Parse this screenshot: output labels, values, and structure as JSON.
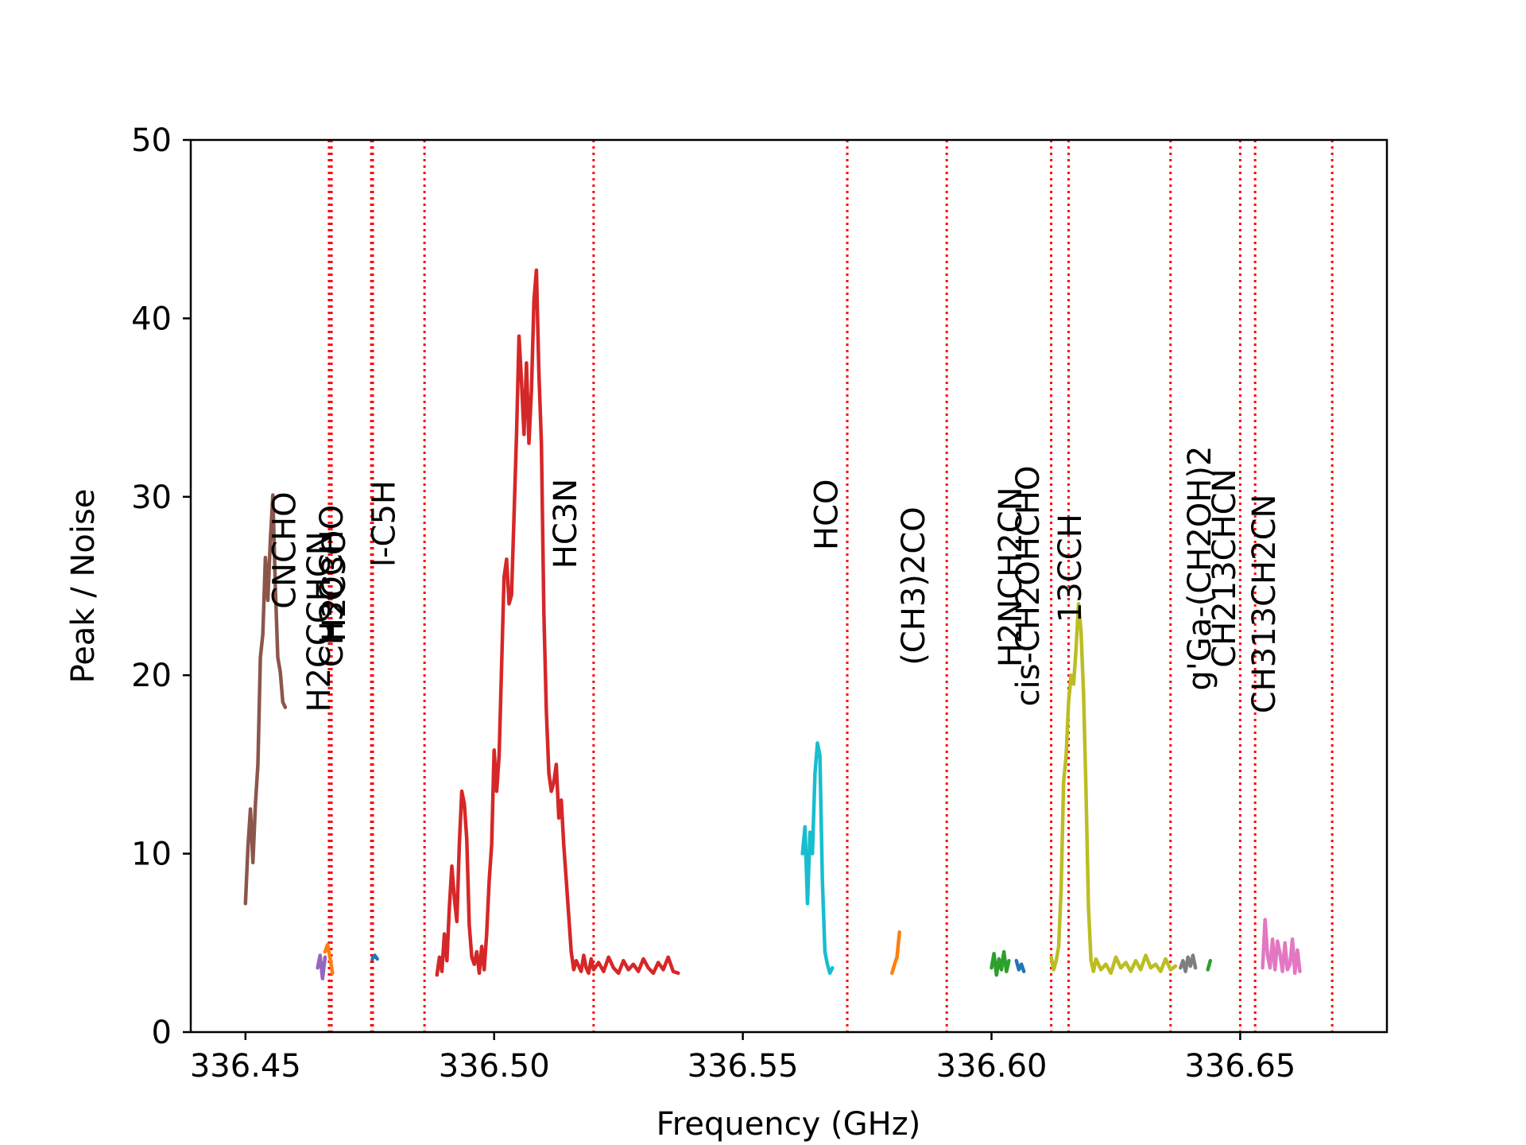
{
  "chart_data": {
    "type": "line",
    "title": "",
    "xlabel": "Frequency (GHz)",
    "ylabel": "Peak / Noise",
    "xlim": [
      336.439,
      336.6795
    ],
    "ylim": [
      0,
      50
    ],
    "xticks": [
      336.45,
      336.5,
      336.55,
      336.6,
      336.65
    ],
    "xtick_labels": [
      "336.45",
      "336.50",
      "336.55",
      "336.60",
      "336.65"
    ],
    "yticks": [
      0,
      10,
      20,
      30,
      40,
      50
    ],
    "ytick_labels": [
      "0",
      "10",
      "20",
      "30",
      "40",
      "50"
    ],
    "grid": false,
    "marker_line_color": "#ff0000",
    "series": [
      {
        "color": "#8c564b",
        "x": [
          336.45,
          336.4505,
          336.451,
          336.4515,
          336.452,
          336.4525,
          336.453,
          336.4535,
          336.454,
          336.4545,
          336.455,
          336.4555,
          336.456,
          336.4565,
          336.457,
          336.4575,
          336.458
        ],
        "y": [
          7.2,
          10.4,
          12.5,
          9.5,
          12.8,
          15.0,
          21.0,
          22.3,
          26.6,
          24.2,
          27.5,
          30.1,
          25.0,
          21.0,
          20.2,
          18.5,
          18.2
        ]
      },
      {
        "color": "#9467bd",
        "x": [
          336.4645,
          336.465,
          336.4655,
          336.466
        ],
        "y": [
          3.6,
          4.3,
          3.0,
          4.2
        ]
      },
      {
        "color": "#ff7f0e",
        "x": [
          336.466,
          336.4665,
          336.467,
          336.4675
        ],
        "y": [
          4.5,
          4.9,
          4.2,
          3.3
        ]
      },
      {
        "color": "#1f77b4",
        "x": [
          336.4755,
          336.476,
          336.4765
        ],
        "y": [
          4.1,
          4.3,
          4.1
        ]
      },
      {
        "color": "#d62728",
        "x": [
          336.4885,
          336.489,
          336.4895,
          336.49,
          336.4905,
          336.491,
          336.4915,
          336.492,
          336.4925,
          336.493,
          336.4935,
          336.494,
          336.4945,
          336.495,
          336.4955,
          336.496,
          336.4965,
          336.497,
          336.4975,
          336.498,
          336.4985,
          336.499,
          336.4995,
          336.5,
          336.5005,
          336.501,
          336.5015,
          336.502,
          336.5025,
          336.503,
          336.5035,
          336.504,
          336.5045,
          336.505,
          336.5055,
          336.506,
          336.5065,
          336.507,
          336.5075,
          336.508,
          336.5085,
          336.509,
          336.5095,
          336.51,
          336.5105,
          336.511,
          336.5115,
          336.512,
          336.5125,
          336.513,
          336.5135,
          336.514,
          336.5145,
          336.515,
          336.5155,
          336.516,
          336.5165,
          336.517,
          336.5175,
          336.518,
          336.5185,
          336.519,
          336.5195,
          336.52,
          336.521,
          336.522,
          336.523,
          336.524,
          336.525,
          336.526,
          336.527,
          336.528,
          336.529,
          336.53,
          336.531,
          336.532,
          336.533,
          336.534,
          336.535,
          336.536,
          336.537
        ],
        "y": [
          3.2,
          4.2,
          3.4,
          5.5,
          4.0,
          7.0,
          9.3,
          7.5,
          6.2,
          10.5,
          13.5,
          12.8,
          10.8,
          6.0,
          4.2,
          3.8,
          4.5,
          3.3,
          4.8,
          3.5,
          5.5,
          8.5,
          10.5,
          15.8,
          13.5,
          15.5,
          20.5,
          25.5,
          26.5,
          24.0,
          24.5,
          29.0,
          33.5,
          39.0,
          36.5,
          33.5,
          37.5,
          33.0,
          36.0,
          41.0,
          42.7,
          37.0,
          33.0,
          23.5,
          18.0,
          14.5,
          13.5,
          14.0,
          15.0,
          12.0,
          13.0,
          10.5,
          8.5,
          6.5,
          4.5,
          3.5,
          4.0,
          3.7,
          3.4,
          4.3,
          3.6,
          3.3,
          4.1,
          3.5,
          3.9,
          3.4,
          4.2,
          3.6,
          3.3,
          4.0,
          3.5,
          3.8,
          3.4,
          4.1,
          3.6,
          3.3,
          3.9,
          3.5,
          4.2,
          3.4,
          3.3
        ]
      },
      {
        "color": "#17becf",
        "x": [
          336.562,
          336.5625,
          336.563,
          336.5635,
          336.564,
          336.5645,
          336.565,
          336.5655,
          336.566,
          336.5665,
          336.567,
          336.5675,
          336.568
        ],
        "y": [
          10.0,
          11.5,
          7.2,
          11.2,
          10.0,
          14.5,
          16.2,
          15.5,
          8.5,
          4.5,
          3.8,
          3.3,
          3.6
        ]
      },
      {
        "color": "#ff7f0e",
        "x": [
          336.58,
          336.5805,
          336.581,
          336.5815
        ],
        "y": [
          3.3,
          3.8,
          4.2,
          5.6
        ]
      },
      {
        "color": "#2ca02c",
        "x": [
          336.6,
          336.6005,
          336.601,
          336.6015,
          336.602,
          336.6025,
          336.603,
          336.6035
        ],
        "y": [
          3.6,
          4.4,
          3.2,
          4.1,
          3.5,
          4.5,
          3.4,
          4.0
        ]
      },
      {
        "color": "#1f77b4",
        "x": [
          336.605,
          336.6055,
          336.606,
          336.6065
        ],
        "y": [
          4.0,
          3.5,
          3.8,
          3.4
        ]
      },
      {
        "color": "#bcbd22",
        "x": [
          336.612,
          336.6125,
          336.613,
          336.6135,
          336.614,
          336.6145,
          336.615,
          336.6155,
          336.616,
          336.6165,
          336.617,
          336.6175,
          336.618,
          336.6185,
          336.619,
          336.6195,
          336.62,
          336.6205,
          336.621,
          336.622,
          336.623,
          336.624,
          336.625,
          336.626,
          336.627,
          336.628,
          336.629,
          336.63,
          336.631,
          336.632,
          336.633,
          336.634,
          336.635,
          336.636,
          336.637
        ],
        "y": [
          4.2,
          3.5,
          4.0,
          4.8,
          8.0,
          14.0,
          15.5,
          18.5,
          20.0,
          19.5,
          21.5,
          24.0,
          22.5,
          19.0,
          13.5,
          7.0,
          4.0,
          3.4,
          4.1,
          3.5,
          3.8,
          3.3,
          4.2,
          3.6,
          3.9,
          3.4,
          4.0,
          3.5,
          4.3,
          3.6,
          3.8,
          3.4,
          4.1,
          3.5,
          3.7
        ]
      },
      {
        "color": "#7f7f7f",
        "x": [
          336.638,
          336.6385,
          336.639,
          336.6395,
          336.64,
          336.6405,
          336.641
        ],
        "y": [
          3.6,
          4.0,
          3.4,
          4.2,
          3.7,
          4.3,
          3.6
        ]
      },
      {
        "color": "#2ca02c",
        "x": [
          336.6435,
          336.644
        ],
        "y": [
          3.5,
          4.0
        ]
      },
      {
        "color": "#e377c2",
        "x": [
          336.6545,
          336.655,
          336.6555,
          336.656,
          336.6565,
          336.657,
          336.6575,
          336.658,
          336.6585,
          336.659,
          336.6595,
          336.66,
          336.6605,
          336.661,
          336.6615,
          336.662
        ],
        "y": [
          3.6,
          6.3,
          4.3,
          3.6,
          5.2,
          3.5,
          5.1,
          4.4,
          3.4,
          5.0,
          3.5,
          3.8,
          5.2,
          3.3,
          4.6,
          3.4
        ]
      }
    ],
    "marker_lines": [
      {
        "x": 336.4668,
        "label": "CNCHO",
        "label_y": 27.0,
        "label_x": 336.46
      },
      {
        "x": 336.4673,
        "label": "H2CCCHCN",
        "label_y": 23.0,
        "label_x": 336.467
      },
      {
        "x": 336.4753,
        "label": "CH3OCHO",
        "label_y": 25.0,
        "label_x": 336.4695
      },
      {
        "x": 336.4756,
        "label": "H2C3O",
        "label_y": 25.0,
        "label_x": 336.47
      },
      {
        "x": 336.486,
        "label": "l-C5H",
        "label_y": 28.5,
        "label_x": 336.48
      },
      {
        "x": 336.52,
        "label": "HC3N",
        "label_y": 28.5,
        "label_x": 336.5165
      },
      {
        "x": 336.571,
        "label": "HCO",
        "label_y": 29.0,
        "label_x": 336.569
      },
      {
        "x": 336.591,
        "label": "(CH3)2CO",
        "label_y": 25.0,
        "label_x": 336.5865
      },
      {
        "x": 336.612,
        "label": "H2NCH2CN",
        "label_y": 25.5,
        "label_x": 336.606
      },
      {
        "x": 336.6155,
        "label": "cis-CH2OHCHO",
        "label_y": 25.0,
        "label_x": 336.6095
      },
      {
        "x": 336.636,
        "label": "13CCH",
        "label_y": 26.0,
        "label_x": 336.618
      },
      {
        "x": 336.65,
        "label": "g'Ga-(CH2OH)2",
        "label_y": 26.0,
        "label_x": 336.644
      },
      {
        "x": 336.653,
        "label": "CH213CHCN",
        "label_y": 26.0,
        "label_x": 336.649
      },
      {
        "x": 336.6685,
        "label": "CH313CH2CN",
        "label_y": 24.0,
        "label_x": 336.657
      }
    ]
  }
}
